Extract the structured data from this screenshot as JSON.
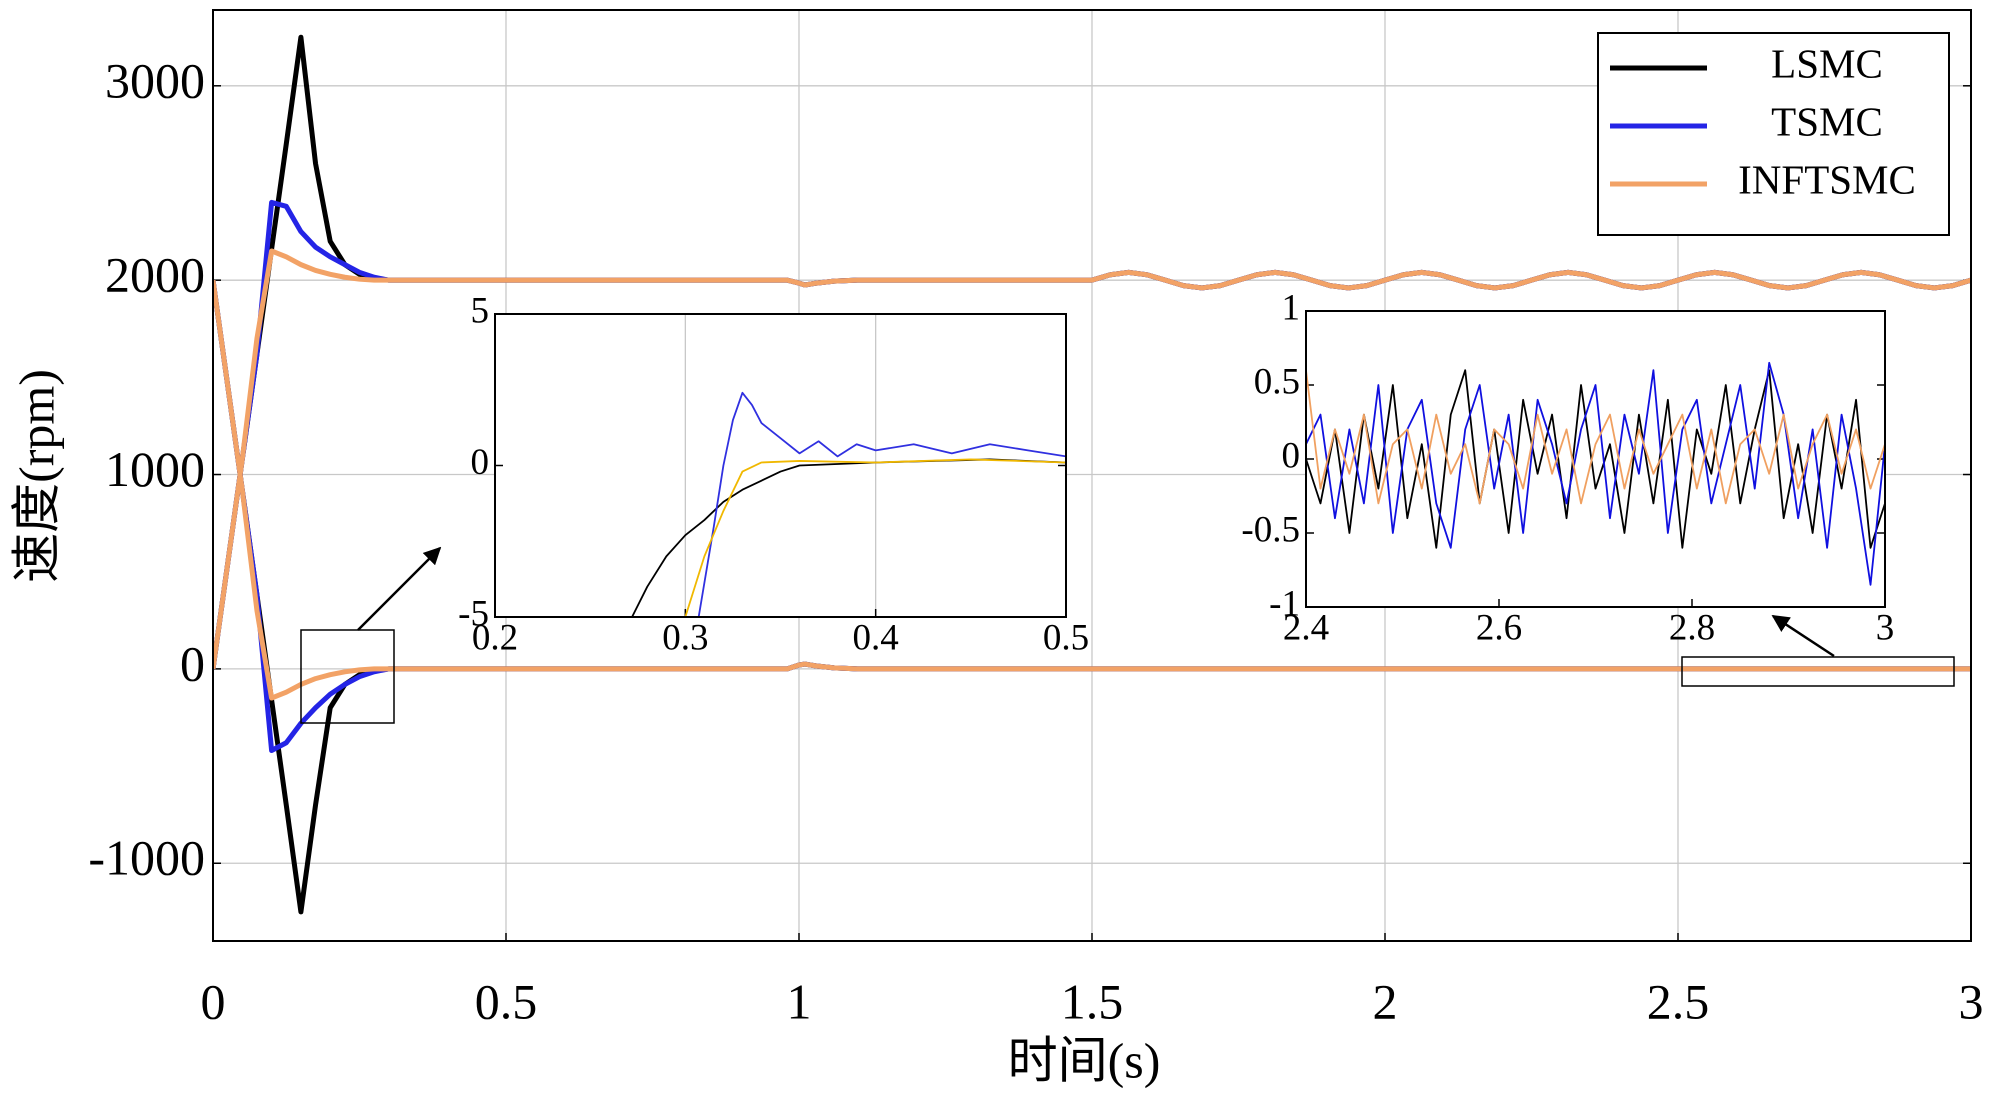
{
  "chart_data": {
    "type": "line",
    "xlabel": "时间(s)",
    "ylabel": "速度(rpm)",
    "xlim": [
      0,
      3
    ],
    "ylim": [
      -1400,
      3390
    ],
    "xticks": [
      0,
      0.5,
      1,
      1.5,
      2,
      2.5,
      3
    ],
    "yticks": [
      -1000,
      0,
      1000,
      2000,
      3000
    ],
    "grid": true,
    "legend": "upper right",
    "x": [
      0,
      0.025,
      0.05,
      0.075,
      0.1,
      0.125,
      0.15,
      0.175,
      0.2,
      0.225,
      0.25,
      0.275,
      0.3,
      0.35,
      0.98,
      1.0,
      1.01,
      1.03,
      1.06,
      1.1,
      1.5,
      1.53125,
      1.5625,
      1.59375,
      1.625,
      1.65625,
      1.6875,
      1.71875,
      1.75,
      1.78125,
      1.8125,
      1.84375,
      1.875,
      1.90625,
      1.9375,
      1.96875,
      2.0,
      2.03125,
      2.0625,
      2.09375,
      2.125,
      2.15625,
      2.1875,
      2.21875,
      2.25,
      2.28125,
      2.3125,
      2.34375,
      2.375,
      2.40625,
      2.4375,
      2.46875,
      2.5,
      2.53125,
      2.5625,
      2.59375,
      2.625,
      2.65625,
      2.6875,
      2.71875,
      2.75,
      2.78125,
      2.8125,
      2.84375,
      2.875,
      2.90625,
      2.9375,
      2.96875,
      3.0
    ],
    "series": [
      {
        "name": "LSMC",
        "color": "#000000",
        "values": [
          0,
          540,
          1080,
          1620,
          2160,
          2700,
          3250,
          2600,
          2200,
          2080,
          2030,
          2010,
          2000,
          2000,
          2000,
          1985,
          1975,
          1985,
          1995,
          2000,
          2000,
          2028,
          2040,
          2028,
          2000,
          1972,
          1960,
          1972,
          2000,
          2028,
          2040,
          2028,
          2000,
          1972,
          1960,
          1972,
          2000,
          2028,
          2040,
          2028,
          2000,
          1972,
          1960,
          1972,
          2000,
          2028,
          2040,
          2028,
          2000,
          1972,
          1960,
          1972,
          2000,
          2028,
          2040,
          2028,
          2000,
          1972,
          1960,
          1972,
          2000,
          2028,
          2040,
          2028,
          2000,
          1972,
          1960,
          1972,
          2000
        ],
        "values_lower": [
          2000,
          1460,
          920,
          380,
          -160,
          -700,
          -1250,
          -700,
          -200,
          -80,
          -30,
          -10,
          0,
          0,
          0,
          20,
          25,
          15,
          5,
          0,
          0,
          0,
          0,
          0,
          0,
          0,
          0,
          0,
          0,
          0,
          0,
          0,
          0,
          0,
          0,
          0,
          0,
          0,
          0,
          0,
          0,
          0,
          0,
          0,
          0,
          0,
          0,
          0,
          0,
          0,
          0,
          0,
          0,
          0,
          0,
          0,
          0,
          0,
          0,
          0,
          0,
          0,
          0,
          0,
          0,
          0,
          0,
          0,
          0
        ]
      },
      {
        "name": "TSMC",
        "color": "#2424e6",
        "values": [
          0,
          540,
          1080,
          1620,
          2400,
          2380,
          2250,
          2170,
          2120,
          2080,
          2040,
          2015,
          2000,
          2000,
          2000,
          1985,
          1975,
          1985,
          1995,
          2000,
          2000,
          2028,
          2040,
          2028,
          2000,
          1972,
          1960,
          1972,
          2000,
          2028,
          2040,
          2028,
          2000,
          1972,
          1960,
          1972,
          2000,
          2028,
          2040,
          2028,
          2000,
          1972,
          1960,
          1972,
          2000,
          2028,
          2040,
          2028,
          2000,
          1972,
          1960,
          1972,
          2000,
          2028,
          2040,
          2028,
          2000,
          1972,
          1960,
          1972,
          2000,
          2028,
          2040,
          2028,
          2000,
          1972,
          1960,
          1972,
          2000
        ],
        "values_lower": [
          2000,
          1460,
          920,
          380,
          -420,
          -380,
          -280,
          -200,
          -130,
          -80,
          -40,
          -15,
          0,
          0,
          0,
          20,
          25,
          15,
          5,
          0,
          0,
          0,
          0,
          0,
          0,
          0,
          0,
          0,
          0,
          0,
          0,
          0,
          0,
          0,
          0,
          0,
          0,
          0,
          0,
          0,
          0,
          0,
          0,
          0,
          0,
          0,
          0,
          0,
          0,
          0,
          0,
          0,
          0,
          0,
          0,
          0,
          0,
          0,
          0,
          0,
          0,
          0,
          0,
          0,
          0,
          0,
          0,
          0,
          0
        ]
      },
      {
        "name": "INFTSMC",
        "color": "#f2a266",
        "values": [
          0,
          540,
          1080,
          1700,
          2150,
          2120,
          2080,
          2050,
          2030,
          2015,
          2005,
          2000,
          2000,
          2000,
          2000,
          1985,
          1975,
          1985,
          1995,
          2000,
          2000,
          2028,
          2040,
          2028,
          2000,
          1972,
          1960,
          1972,
          2000,
          2028,
          2040,
          2028,
          2000,
          1972,
          1960,
          1972,
          2000,
          2028,
          2040,
          2028,
          2000,
          1972,
          1960,
          1972,
          2000,
          2028,
          2040,
          2028,
          2000,
          1972,
          1960,
          1972,
          2000,
          2028,
          2040,
          2028,
          2000,
          1972,
          1960,
          1972,
          2000,
          2028,
          2040,
          2028,
          2000,
          1972,
          1960,
          1972,
          2000
        ],
        "values_lower": [
          2000,
          1460,
          920,
          300,
          -150,
          -120,
          -80,
          -50,
          -30,
          -15,
          -5,
          0,
          0,
          0,
          0,
          20,
          25,
          15,
          5,
          0,
          0,
          0,
          0,
          0,
          0,
          0,
          0,
          0,
          0,
          0,
          0,
          0,
          0,
          0,
          0,
          0,
          0,
          0,
          0,
          0,
          0,
          0,
          0,
          0,
          0,
          0,
          0,
          0,
          0,
          0,
          0,
          0,
          0,
          0,
          0,
          0,
          0,
          0,
          0,
          0,
          0,
          0,
          0,
          0,
          0,
          0,
          0,
          0,
          0
        ]
      }
    ],
    "insets": [
      {
        "xlim": [
          0.2,
          0.5
        ],
        "ylim": [
          -5,
          5
        ],
        "xticks": [
          0.2,
          0.3,
          0.4,
          0.5
        ],
        "yticks": [
          -5,
          0,
          5
        ],
        "grid": true,
        "series": [
          {
            "color": "#000000",
            "x": [
              0.272,
              0.28,
              0.29,
              0.3,
              0.31,
              0.32,
              0.33,
              0.34,
              0.35,
              0.36,
              0.38,
              0.4,
              0.43,
              0.46,
              0.5
            ],
            "values": [
              -5,
              -4,
              -3,
              -2.3,
              -1.8,
              -1.2,
              -0.8,
              -0.5,
              -0.2,
              0,
              0.05,
              0.1,
              0.15,
              0.2,
              0.1
            ]
          },
          {
            "color": "#3030e0",
            "x": [
              0.307,
              0.315,
              0.32,
              0.325,
              0.33,
              0.335,
              0.34,
              0.35,
              0.36,
              0.37,
              0.38,
              0.39,
              0.4,
              0.42,
              0.44,
              0.46,
              0.48,
              0.5
            ],
            "values": [
              -5,
              -2,
              0,
              1.5,
              2.4,
              2,
              1.4,
              0.9,
              0.4,
              0.8,
              0.3,
              0.7,
              0.5,
              0.7,
              0.4,
              0.7,
              0.5,
              0.3
            ]
          },
          {
            "color": "#f0b800",
            "x": [
              0.3,
              0.31,
              0.32,
              0.33,
              0.34,
              0.36,
              0.4,
              0.45,
              0.5
            ],
            "values": [
              -5,
              -3,
              -1.5,
              -0.2,
              0.1,
              0.15,
              0.1,
              0.2,
              0.1
            ]
          }
        ]
      },
      {
        "xlim": [
          2.4,
          3
        ],
        "ylim": [
          -1,
          1
        ],
        "xticks": [
          2.4,
          2.6,
          2.8,
          3
        ],
        "yticks": [
          -1,
          -0.5,
          0,
          0.5,
          1
        ],
        "grid": false,
        "x": [
          2.4,
          2.415,
          2.43,
          2.445,
          2.46,
          2.475,
          2.49,
          2.505,
          2.52,
          2.535,
          2.55,
          2.565,
          2.58,
          2.595,
          2.61,
          2.625,
          2.64,
          2.655,
          2.67,
          2.685,
          2.7,
          2.715,
          2.73,
          2.745,
          2.76,
          2.775,
          2.79,
          2.805,
          2.82,
          2.835,
          2.85,
          2.865,
          2.88,
          2.895,
          2.91,
          2.925,
          2.94,
          2.955,
          2.97,
          2.985,
          3.0
        ],
        "series": [
          {
            "color": "#000000",
            "values": [
              0,
              -0.3,
              0.2,
              -0.5,
              0.3,
              -0.2,
              0.5,
              -0.4,
              0.1,
              -0.6,
              0.3,
              0.6,
              -0.3,
              0.2,
              -0.5,
              0.4,
              -0.1,
              0.3,
              -0.4,
              0.5,
              -0.2,
              0.1,
              -0.5,
              0.3,
              -0.3,
              0.4,
              -0.6,
              0.2,
              -0.1,
              0.5,
              -0.3,
              0.2,
              0.6,
              -0.4,
              0.1,
              -0.5,
              0.3,
              -0.2,
              0.4,
              -0.6,
              -0.3
            ]
          },
          {
            "color": "#1010e0",
            "values": [
              0.1,
              0.3,
              -0.4,
              0.2,
              -0.3,
              0.5,
              -0.5,
              0.2,
              0.4,
              -0.3,
              -0.6,
              0.2,
              0.5,
              -0.2,
              0.3,
              -0.5,
              0.4,
              0.1,
              -0.3,
              0.2,
              0.5,
              -0.4,
              0.3,
              -0.1,
              0.6,
              -0.5,
              0.2,
              0.4,
              -0.3,
              0.1,
              0.5,
              -0.2,
              0.65,
              0.3,
              -0.4,
              0.2,
              -0.6,
              0.3,
              -0.2,
              -0.85,
              0.1
            ]
          },
          {
            "color": "#f0a060",
            "values": [
              0.6,
              -0.2,
              0.2,
              -0.1,
              0.3,
              -0.3,
              0.1,
              0.2,
              -0.2,
              0.3,
              -0.1,
              0.1,
              -0.3,
              0.2,
              0.1,
              -0.2,
              0.3,
              -0.1,
              0.2,
              -0.3,
              0.1,
              0.3,
              -0.2,
              0.2,
              -0.1,
              0.1,
              0.3,
              -0.2,
              0.2,
              -0.3,
              0.1,
              0.2,
              -0.1,
              0.3,
              -0.2,
              0.1,
              0.3,
              -0.1,
              0.2,
              -0.2,
              0.1
            ]
          }
        ]
      }
    ]
  }
}
